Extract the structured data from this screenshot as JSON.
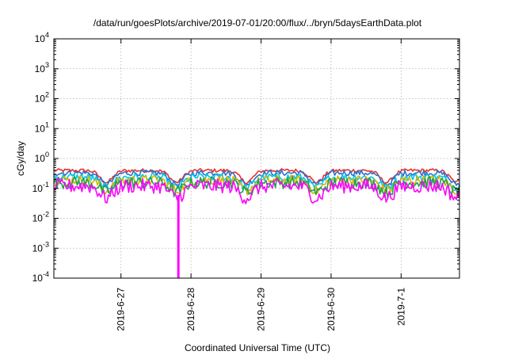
{
  "chart_data": {
    "type": "line",
    "title": "/data/run/goesPlots/archive/2019-07-01/20:00/flux/../bryn/5daysEarthData.plot",
    "xlabel": "Coordinated Universal Time (UTC)",
    "ylabel": "cGy/day",
    "yscale": "log",
    "ylim_exponents": [
      -4,
      4
    ],
    "y_tick_base": "10",
    "y_ticks": [
      {
        "exp": "-4"
      },
      {
        "exp": "-3"
      },
      {
        "exp": "-2"
      },
      {
        "exp": "-1"
      },
      {
        "exp": "0"
      },
      {
        "exp": "1"
      },
      {
        "exp": "2"
      },
      {
        "exp": "3"
      },
      {
        "exp": "4"
      }
    ],
    "xlim": [
      "2019-06-26 01:00",
      "2019-07-01 20:00"
    ],
    "x_ticks": [
      {
        "label": "2019-6-27",
        "date": "2019-06-27"
      },
      {
        "label": "2019-6-28",
        "date": "2019-06-28"
      },
      {
        "label": "2019-6-29",
        "date": "2019-06-29"
      },
      {
        "label": "2019-6-30",
        "date": "2019-06-30"
      },
      {
        "label": "2019-7-1",
        "date": "2019-07-01"
      }
    ],
    "grid": true,
    "legend": "none",
    "series": [
      {
        "color": "#e8322d",
        "dip_dates": [
          "2019-06-26 19:00",
          "2019-06-27 19:00",
          "2019-06-28 19:00",
          "2019-06-29 19:00",
          "2019-06-30 19:00",
          "2019-07-01 19:00"
        ],
        "y_at_peak": 0.42,
        "y_at_dip": 0.17
      },
      {
        "color": "#2e6fcf",
        "dip_dates": [
          "2019-06-26 19:00",
          "2019-06-27 19:00",
          "2019-06-28 19:00",
          "2019-06-29 19:00",
          "2019-06-30 19:00",
          "2019-07-01 19:00"
        ],
        "y_at_peak": 0.36,
        "y_at_dip": 0.15
      },
      {
        "color": "#00c8e8",
        "dip_dates": [
          "2019-06-26 19:00",
          "2019-06-27 19:00",
          "2019-06-28 19:00",
          "2019-06-29 19:00",
          "2019-06-30 19:00",
          "2019-07-01 19:00"
        ],
        "y_at_peak": 0.27,
        "y_at_dip": 0.12
      },
      {
        "color": "#d8b400",
        "dip_dates": [
          "2019-06-26 19:00",
          "2019-06-27 19:00",
          "2019-06-28 19:00",
          "2019-06-29 19:00",
          "2019-06-30 19:00",
          "2019-07-01 19:00"
        ],
        "y_at_peak": 0.22,
        "y_at_dip": 0.1
      },
      {
        "color": "#20a050",
        "dip_dates": [
          "2019-06-26 19:00",
          "2019-06-27 19:00",
          "2019-06-28 19:00",
          "2019-06-29 19:00",
          "2019-06-30 19:00",
          "2019-07-01 19:00"
        ],
        "y_at_peak": 0.19,
        "y_at_dip": 0.09
      },
      {
        "color": "#ff00ff",
        "dip_dates": [
          "2019-06-26 19:00",
          "2019-06-27 19:00",
          "2019-06-28 19:00",
          "2019-06-29 19:00",
          "2019-06-30 19:00",
          "2019-07-01 19:00"
        ],
        "y_at_peak": 0.15,
        "y_at_dip": 0.06,
        "spike_date": "2019-06-27 19:40",
        "spike_min": 0.0001
      }
    ]
  }
}
